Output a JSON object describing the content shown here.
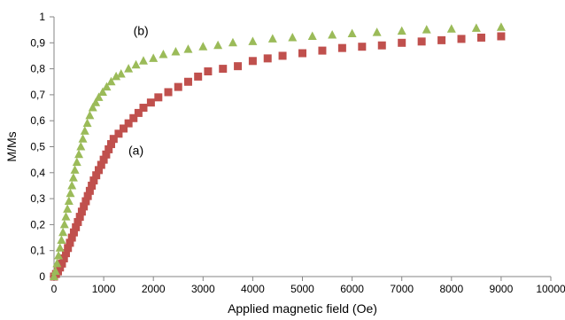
{
  "chart_data": {
    "type": "scatter",
    "title": "",
    "xlabel": "Applied magnetic field (Oe)",
    "ylabel": "M/Ms",
    "xlim": [
      0,
      10000
    ],
    "ylim": [
      0,
      1
    ],
    "x_ticks": [
      "0",
      "1000",
      "2000",
      "3000",
      "4000",
      "5000",
      "6000",
      "7000",
      "8000",
      "9000",
      "10000"
    ],
    "y_ticks": [
      "0",
      "0,1",
      "0,2",
      "0,3",
      "0,4",
      "0,5",
      "0,6",
      "0,7",
      "0,8",
      "0,9",
      "1"
    ],
    "grid": false,
    "legend": "none",
    "annotations": [
      {
        "label": "(a)",
        "series": "a",
        "x": 1650,
        "y": 0.47
      },
      {
        "label": "(b)",
        "series": "b",
        "x": 1750,
        "y": 0.93
      }
    ],
    "series": [
      {
        "id": "a",
        "marker": "square",
        "color": "#c0504d",
        "points": [
          [
            0,
            0
          ],
          [
            40,
            0.01
          ],
          [
            80,
            0.02
          ],
          [
            120,
            0.035
          ],
          [
            160,
            0.05
          ],
          [
            200,
            0.07
          ],
          [
            240,
            0.09
          ],
          [
            280,
            0.11
          ],
          [
            320,
            0.13
          ],
          [
            360,
            0.15
          ],
          [
            400,
            0.17
          ],
          [
            440,
            0.19
          ],
          [
            480,
            0.21
          ],
          [
            520,
            0.23
          ],
          [
            560,
            0.25
          ],
          [
            600,
            0.27
          ],
          [
            640,
            0.29
          ],
          [
            680,
            0.31
          ],
          [
            720,
            0.33
          ],
          [
            760,
            0.35
          ],
          [
            800,
            0.37
          ],
          [
            850,
            0.39
          ],
          [
            900,
            0.41
          ],
          [
            950,
            0.43
          ],
          [
            1000,
            0.45
          ],
          [
            1050,
            0.47
          ],
          [
            1100,
            0.49
          ],
          [
            1150,
            0.51
          ],
          [
            1200,
            0.53
          ],
          [
            1300,
            0.55
          ],
          [
            1400,
            0.57
          ],
          [
            1500,
            0.59
          ],
          [
            1600,
            0.61
          ],
          [
            1700,
            0.63
          ],
          [
            1800,
            0.65
          ],
          [
            1950,
            0.67
          ],
          [
            2100,
            0.69
          ],
          [
            2300,
            0.71
          ],
          [
            2500,
            0.73
          ],
          [
            2700,
            0.75
          ],
          [
            2900,
            0.77
          ],
          [
            3100,
            0.79
          ],
          [
            3400,
            0.8
          ],
          [
            3700,
            0.81
          ],
          [
            4000,
            0.83
          ],
          [
            4300,
            0.84
          ],
          [
            4600,
            0.85
          ],
          [
            5000,
            0.86
          ],
          [
            5400,
            0.87
          ],
          [
            5800,
            0.88
          ],
          [
            6200,
            0.885
          ],
          [
            6600,
            0.89
          ],
          [
            7000,
            0.9
          ],
          [
            7400,
            0.905
          ],
          [
            7800,
            0.91
          ],
          [
            8200,
            0.915
          ],
          [
            8600,
            0.92
          ],
          [
            9000,
            0.925
          ]
        ]
      },
      {
        "id": "b",
        "marker": "triangle",
        "color": "#9bbb59",
        "points": [
          [
            0,
            0
          ],
          [
            30,
            0.02
          ],
          [
            60,
            0.05
          ],
          [
            90,
            0.08
          ],
          [
            120,
            0.11
          ],
          [
            150,
            0.14
          ],
          [
            180,
            0.17
          ],
          [
            210,
            0.2
          ],
          [
            240,
            0.23
          ],
          [
            270,
            0.26
          ],
          [
            300,
            0.29
          ],
          [
            330,
            0.32
          ],
          [
            360,
            0.35
          ],
          [
            390,
            0.38
          ],
          [
            420,
            0.41
          ],
          [
            460,
            0.44
          ],
          [
            500,
            0.47
          ],
          [
            540,
            0.5
          ],
          [
            580,
            0.53
          ],
          [
            620,
            0.56
          ],
          [
            670,
            0.59
          ],
          [
            720,
            0.62
          ],
          [
            780,
            0.65
          ],
          [
            840,
            0.67
          ],
          [
            900,
            0.69
          ],
          [
            980,
            0.71
          ],
          [
            1060,
            0.73
          ],
          [
            1150,
            0.75
          ],
          [
            1250,
            0.77
          ],
          [
            1350,
            0.78
          ],
          [
            1500,
            0.8
          ],
          [
            1650,
            0.815
          ],
          [
            1800,
            0.83
          ],
          [
            2000,
            0.84
          ],
          [
            2200,
            0.855
          ],
          [
            2450,
            0.865
          ],
          [
            2700,
            0.875
          ],
          [
            3000,
            0.885
          ],
          [
            3300,
            0.89
          ],
          [
            3600,
            0.9
          ],
          [
            4000,
            0.905
          ],
          [
            4400,
            0.915
          ],
          [
            4800,
            0.92
          ],
          [
            5200,
            0.925
          ],
          [
            5600,
            0.93
          ],
          [
            6000,
            0.935
          ],
          [
            6500,
            0.94
          ],
          [
            7000,
            0.945
          ],
          [
            7500,
            0.95
          ],
          [
            8000,
            0.953
          ],
          [
            8500,
            0.956
          ],
          [
            9000,
            0.96
          ]
        ]
      }
    ]
  }
}
